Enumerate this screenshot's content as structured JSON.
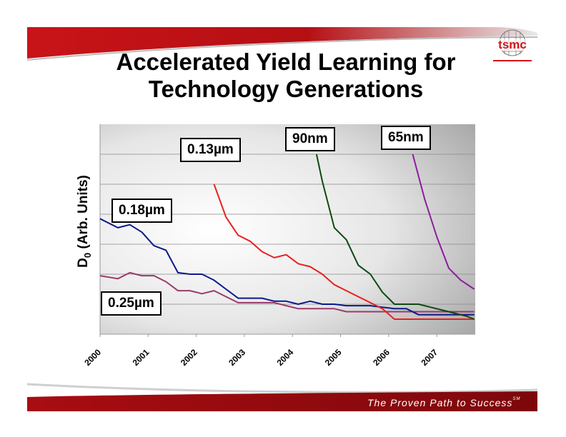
{
  "slide": {
    "title_line1": "Accelerated Yield Learning for",
    "title_line2": "Technology Generations",
    "logo_text": "tsmc",
    "tagline": "The Proven Path to Success",
    "tagline_mark": "SM"
  },
  "chart_data": {
    "type": "line",
    "ylabel": "D0 (Arb. Units)",
    "ylabel_main": "D",
    "ylabel_sub": "0",
    "ylabel_rest": " (Arb. Units)",
    "xlabel": "",
    "xlim": [
      2000,
      2007.8
    ],
    "ylim": [
      0,
      7
    ],
    "grid": true,
    "x_ticks": [
      "2000",
      "2001",
      "2002",
      "2003",
      "2004",
      "2005",
      "2006",
      "2007"
    ],
    "colors": {
      "0.25um": "#9b3a6a",
      "0.18um": "#0a1a8c",
      "0.13um": "#e82020",
      "90nm": "#0b4a10",
      "65nm": "#8e1aa0"
    },
    "series": [
      {
        "name": "0.25µm",
        "color": "#9b3a6a",
        "x": [
          2000.0,
          2000.37,
          2000.62,
          2000.87,
          2001.12,
          2001.37,
          2001.62,
          2001.87,
          2002.12,
          2002.37,
          2002.62,
          2002.87,
          2003.12,
          2003.37,
          2003.62,
          2003.87,
          2004.12,
          2004.37,
          2004.62,
          2004.87,
          2005.12,
          2005.37,
          2005.62,
          2005.87,
          2006.12,
          2006.37,
          2006.62,
          2006.87,
          2007.12,
          2007.37,
          2007.62,
          2007.78
        ],
        "y": [
          1.95,
          1.85,
          2.05,
          1.95,
          1.95,
          1.75,
          1.45,
          1.45,
          1.35,
          1.45,
          1.25,
          1.05,
          1.05,
          1.05,
          1.05,
          0.95,
          0.85,
          0.85,
          0.85,
          0.85,
          0.75,
          0.75,
          0.75,
          0.75,
          0.75,
          0.75,
          0.75,
          0.75,
          0.75,
          0.75,
          0.75,
          0.75
        ]
      },
      {
        "name": "0.18µm",
        "color": "#0a1a8c",
        "x": [
          2000.0,
          2000.37,
          2000.62,
          2000.87,
          2001.12,
          2001.37,
          2001.62,
          2001.87,
          2002.12,
          2002.37,
          2002.62,
          2002.87,
          2003.12,
          2003.37,
          2003.62,
          2003.87,
          2004.12,
          2004.37,
          2004.62,
          2004.87,
          2005.12,
          2005.37,
          2005.62,
          2005.87,
          2006.12,
          2006.37,
          2006.62,
          2006.87,
          2007.12,
          2007.37,
          2007.62,
          2007.78
        ],
        "y": [
          3.85,
          3.55,
          3.65,
          3.4,
          2.95,
          2.8,
          2.05,
          2.0,
          2.0,
          1.8,
          1.5,
          1.2,
          1.2,
          1.2,
          1.1,
          1.1,
          1.0,
          1.1,
          1.0,
          1.0,
          0.95,
          0.95,
          0.95,
          0.9,
          0.85,
          0.85,
          0.65,
          0.65,
          0.65,
          0.65,
          0.65,
          0.65
        ]
      },
      {
        "name": "0.13µm",
        "color": "#e82020",
        "x": [
          2002.37,
          2002.62,
          2002.87,
          2003.12,
          2003.37,
          2003.62,
          2003.87,
          2004.12,
          2004.37,
          2004.62,
          2004.87,
          2005.12,
          2005.37,
          2005.62,
          2005.87,
          2006.12,
          2006.37,
          2006.62,
          2006.87,
          2007.12,
          2007.37,
          2007.62,
          2007.78
        ],
        "y": [
          5.0,
          3.9,
          3.3,
          3.1,
          2.75,
          2.55,
          2.65,
          2.35,
          2.25,
          2.0,
          1.65,
          1.45,
          1.25,
          1.05,
          0.85,
          0.5,
          0.5,
          0.5,
          0.5,
          0.5,
          0.5,
          0.5,
          0.5
        ]
      },
      {
        "name": "90nm",
        "color": "#0b4a10",
        "x": [
          2004.5,
          2004.62,
          2004.87,
          2005.12,
          2005.37,
          2005.62,
          2005.87,
          2006.12,
          2006.37,
          2006.62,
          2006.87,
          2007.12,
          2007.37,
          2007.62,
          2007.78
        ],
        "y": [
          6.0,
          5.1,
          3.55,
          3.15,
          2.3,
          2.0,
          1.4,
          1.0,
          1.0,
          1.0,
          0.9,
          0.8,
          0.7,
          0.6,
          0.5
        ]
      },
      {
        "name": "65nm",
        "color": "#8e1aa0",
        "x": [
          2006.5,
          2006.75,
          2007.0,
          2007.25,
          2007.5,
          2007.78
        ],
        "y": [
          6.0,
          4.5,
          3.25,
          2.2,
          1.8,
          1.5
        ]
      }
    ]
  }
}
